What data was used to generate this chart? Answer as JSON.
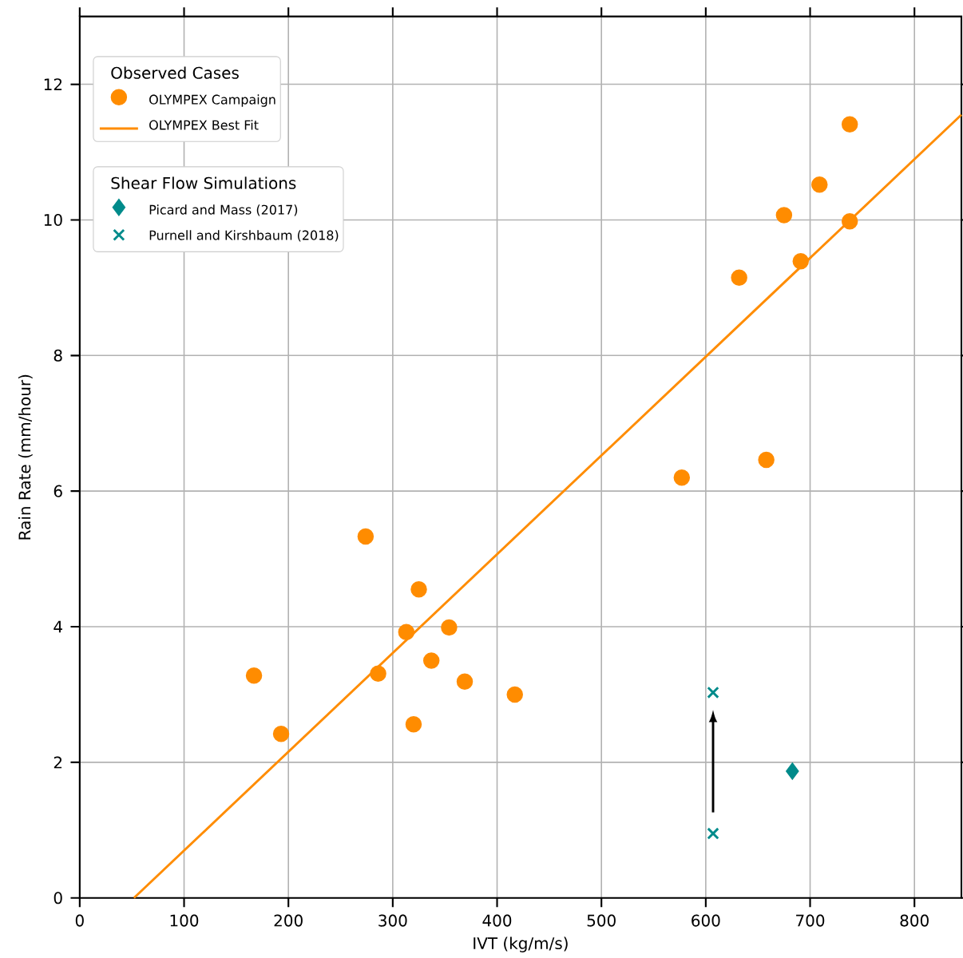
{
  "chart_data": {
    "type": "scatter",
    "xlabel": "IVT (kg/m/s)",
    "ylabel": "Rain Rate (mm/hour)",
    "xlim": [
      0,
      845
    ],
    "ylim": [
      0,
      13
    ],
    "xticks": [
      0,
      100,
      200,
      300,
      400,
      500,
      600,
      700,
      800
    ],
    "yticks": [
      0,
      2,
      4,
      6,
      8,
      10,
      12
    ],
    "grid": true,
    "legend": "top left",
    "legend_title": [
      "Observed Cases",
      "Shear Flow Simulations"
    ],
    "series": [
      {
        "name": "OLYMPEX Campaign",
        "marker": "circle",
        "color": "#ff8c00",
        "x": [
          167,
          193,
          274,
          286,
          313,
          325,
          320,
          337,
          354,
          369,
          417,
          577,
          658,
          632,
          675,
          691,
          709,
          738,
          738
        ],
        "values": [
          3.28,
          2.42,
          5.33,
          3.31,
          3.92,
          4.55,
          2.56,
          3.5,
          3.99,
          3.19,
          3.0,
          6.2,
          6.46,
          9.15,
          10.07,
          9.39,
          10.52,
          11.41,
          9.98
        ]
      },
      {
        "name": "OLYMPEX Best Fit",
        "type": "line",
        "marker": "none",
        "line_style": "solid",
        "color": "#ff8c00",
        "x": [
          52,
          845
        ],
        "values": [
          0,
          11.55
        ]
      },
      {
        "name": "Picard and Mass (2017)",
        "marker": "diamond",
        "color": "#008b8b",
        "x": [
          683
        ],
        "values": [
          1.87
        ]
      },
      {
        "name": "Purnell and Kirshbaum (2018)",
        "marker": "cross",
        "color": "#008b8b",
        "x": [
          607,
          607
        ],
        "values": [
          0.95,
          3.03
        ]
      }
    ]
  }
}
